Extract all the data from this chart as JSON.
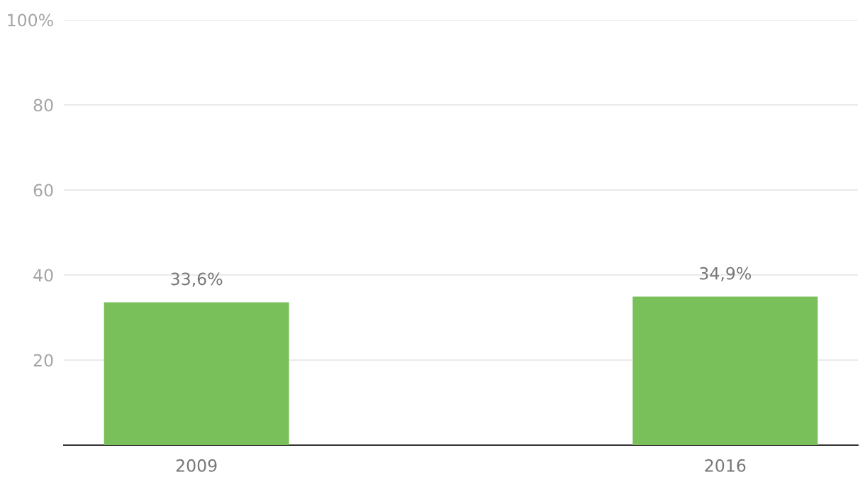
{
  "chart_data": {
    "type": "bar",
    "categories": [
      "2009",
      "2016"
    ],
    "values": [
      33.6,
      34.9
    ],
    "value_labels": [
      "33,6%",
      "34,9%"
    ],
    "color": "#79c05a",
    "ylim": [
      0,
      100
    ],
    "yticks": [
      20,
      40,
      60,
      80,
      {
        "value": 100,
        "label": "100%"
      }
    ],
    "grid": "y",
    "legend": false
  }
}
